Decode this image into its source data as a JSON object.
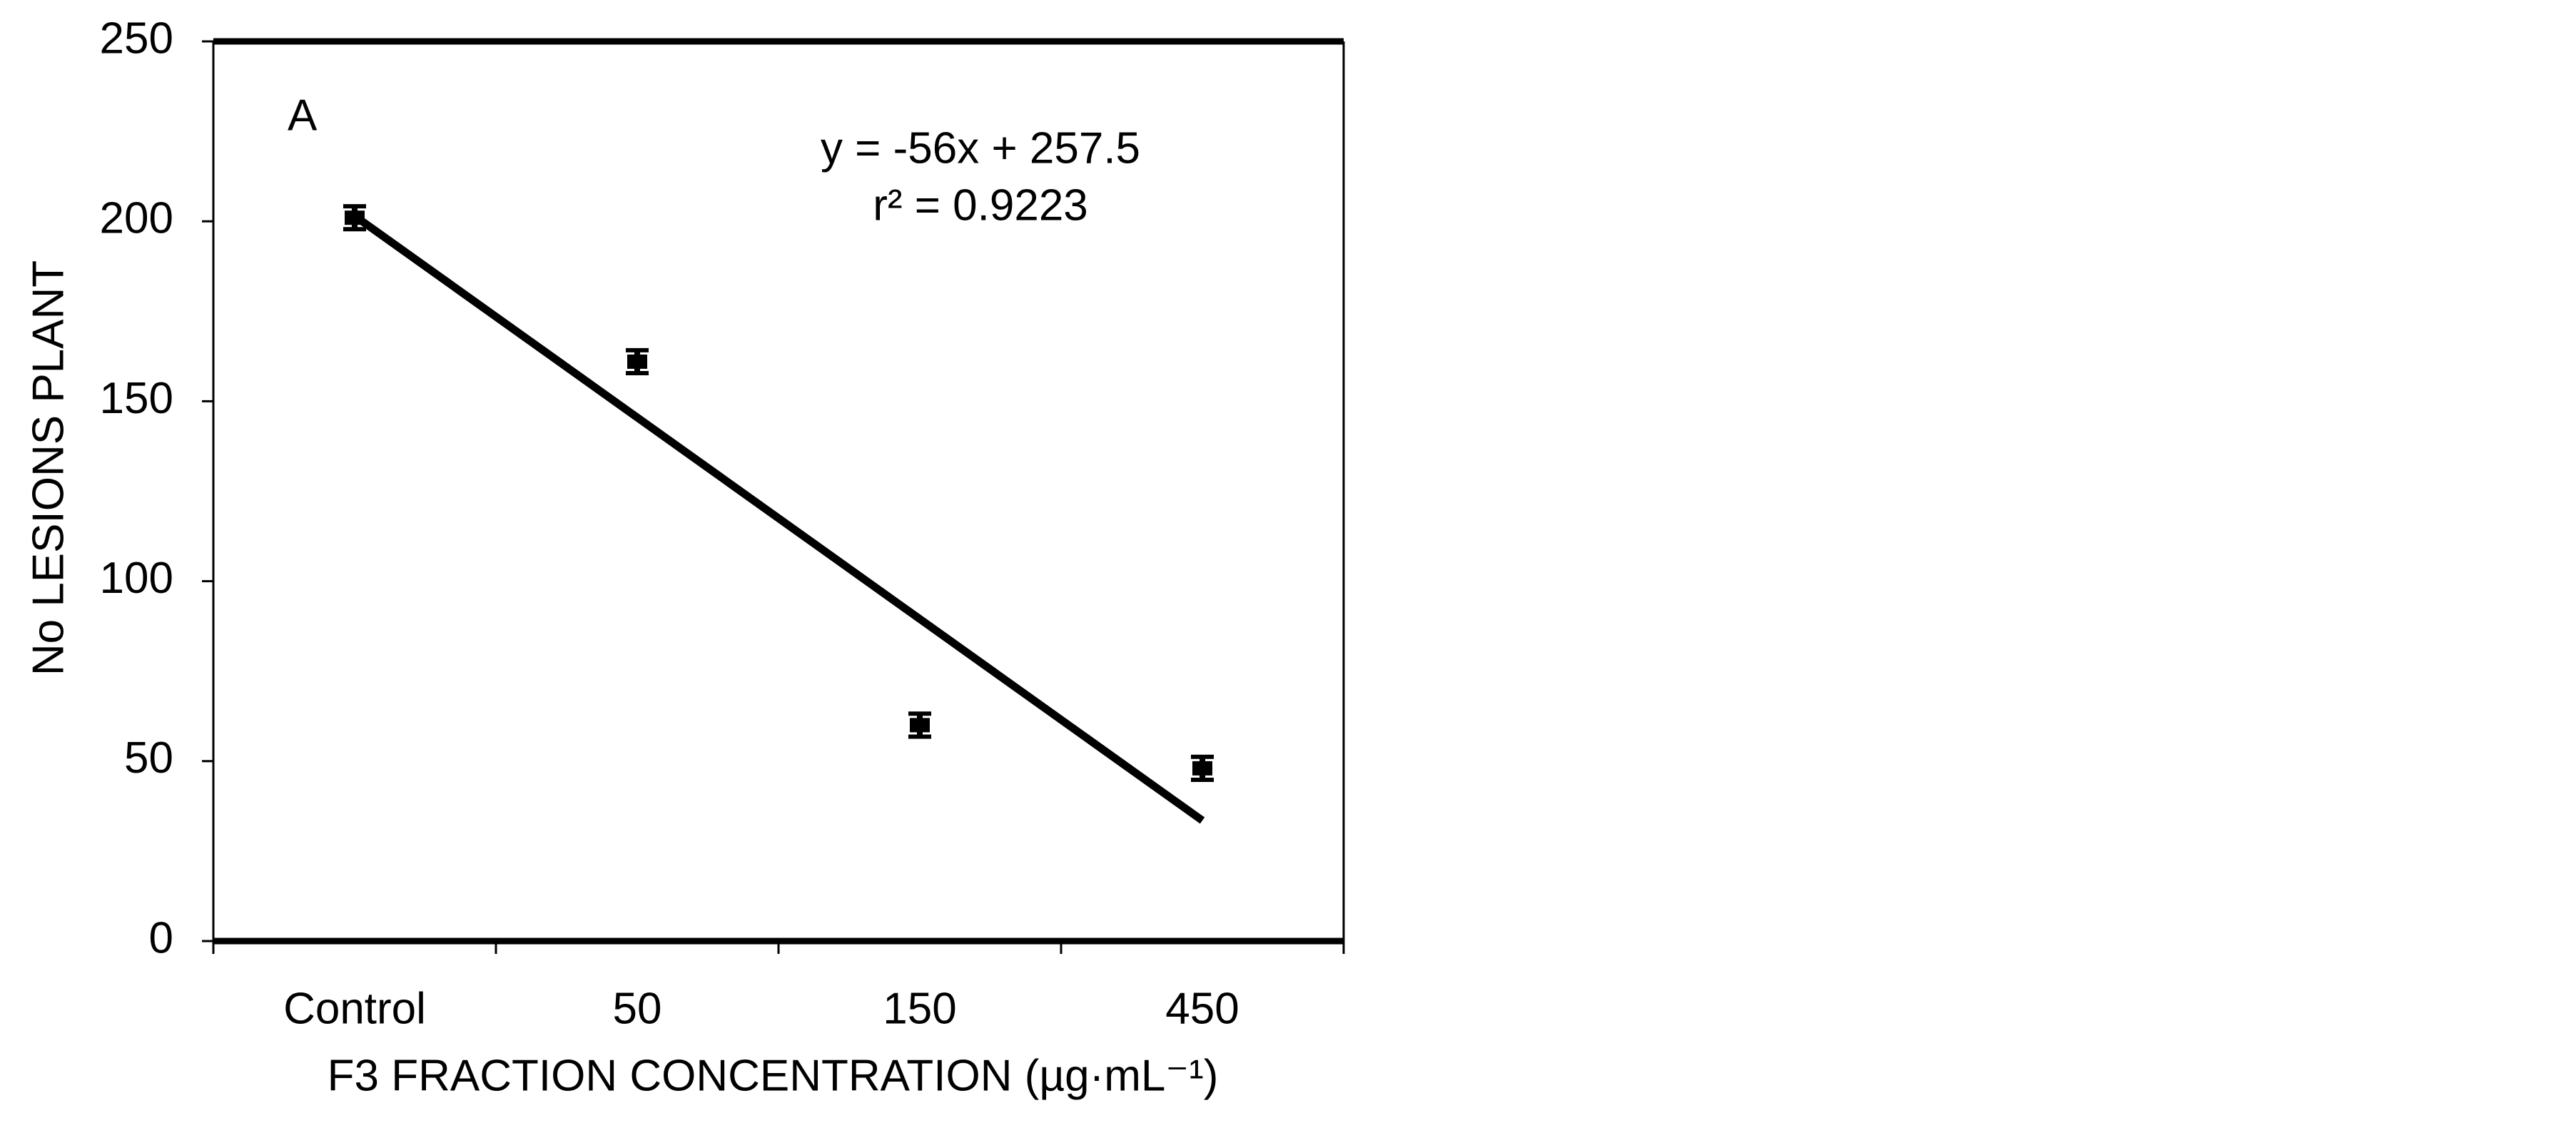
{
  "chart_data": {
    "type": "scatter",
    "panel_label": "A",
    "equation": "y = -56x + 257.5",
    "r_squared": "r² = 0.9223",
    "y_label": "No LESIONS PLANT",
    "x_label": "F3 FRACTION CONCENTRATION (µg·mL⁻¹)",
    "categories": [
      "Control",
      "50",
      "150",
      "450"
    ],
    "values": [
      201,
      161,
      60,
      48
    ],
    "errors": [
      2,
      2,
      2,
      2
    ],
    "color": "#000000",
    "trendline": {
      "slope": -56,
      "intercept": 257.5
    },
    "ylim": [
      0,
      250
    ],
    "yticks": [
      0,
      50,
      100,
      150,
      200,
      250
    ]
  }
}
